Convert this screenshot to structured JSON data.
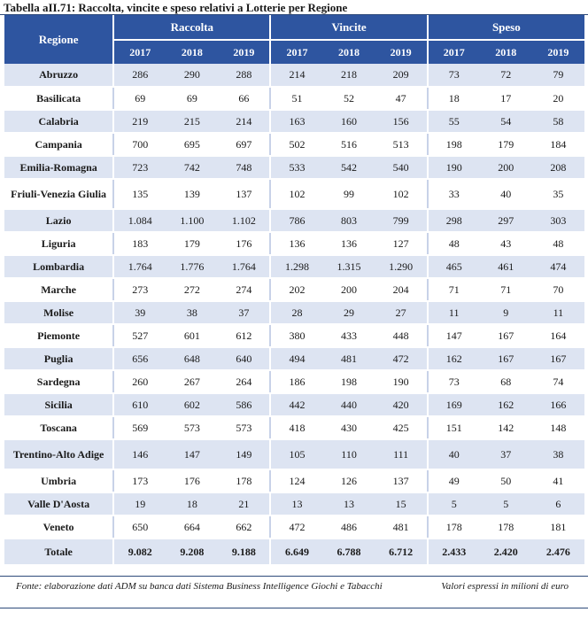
{
  "title": "Tabella aII.71: Raccolta, vincite e speso relativi a Lotterie per Regione",
  "table": {
    "region_header": "Regione",
    "groups": [
      "Raccolta",
      "Vincite",
      "Speso"
    ],
    "years": [
      "2017",
      "2018",
      "2019"
    ],
    "rows": [
      {
        "region": "Abruzzo",
        "values": [
          "286",
          "290",
          "288",
          "214",
          "218",
          "209",
          "73",
          "72",
          "79"
        ]
      },
      {
        "region": "Basilicata",
        "values": [
          "69",
          "69",
          "66",
          "51",
          "52",
          "47",
          "18",
          "17",
          "20"
        ]
      },
      {
        "region": "Calabria",
        "values": [
          "219",
          "215",
          "214",
          "163",
          "160",
          "156",
          "55",
          "54",
          "58"
        ]
      },
      {
        "region": "Campania",
        "values": [
          "700",
          "695",
          "697",
          "502",
          "516",
          "513",
          "198",
          "179",
          "184"
        ]
      },
      {
        "region": "Emilia-Romagna",
        "values": [
          "723",
          "742",
          "748",
          "533",
          "542",
          "540",
          "190",
          "200",
          "208"
        ]
      },
      {
        "region": "Friuli-Venezia Giulia",
        "values": [
          "135",
          "139",
          "137",
          "102",
          "99",
          "102",
          "33",
          "40",
          "35"
        ]
      },
      {
        "region": "Lazio",
        "values": [
          "1.084",
          "1.100",
          "1.102",
          "786",
          "803",
          "799",
          "298",
          "297",
          "303"
        ]
      },
      {
        "region": "Liguria",
        "values": [
          "183",
          "179",
          "176",
          "136",
          "136",
          "127",
          "48",
          "43",
          "48"
        ]
      },
      {
        "region": "Lombardia",
        "values": [
          "1.764",
          "1.776",
          "1.764",
          "1.298",
          "1.315",
          "1.290",
          "465",
          "461",
          "474"
        ]
      },
      {
        "region": "Marche",
        "values": [
          "273",
          "272",
          "274",
          "202",
          "200",
          "204",
          "71",
          "71",
          "70"
        ]
      },
      {
        "region": "Molise",
        "values": [
          "39",
          "38",
          "37",
          "28",
          "29",
          "27",
          "11",
          "9",
          "11"
        ]
      },
      {
        "region": "Piemonte",
        "values": [
          "527",
          "601",
          "612",
          "380",
          "433",
          "448",
          "147",
          "167",
          "164"
        ]
      },
      {
        "region": "Puglia",
        "values": [
          "656",
          "648",
          "640",
          "494",
          "481",
          "472",
          "162",
          "167",
          "167"
        ]
      },
      {
        "region": "Sardegna",
        "values": [
          "260",
          "267",
          "264",
          "186",
          "198",
          "190",
          "73",
          "68",
          "74"
        ]
      },
      {
        "region": "Sicilia",
        "values": [
          "610",
          "602",
          "586",
          "442",
          "440",
          "420",
          "169",
          "162",
          "166"
        ]
      },
      {
        "region": "Toscana",
        "values": [
          "569",
          "573",
          "573",
          "418",
          "430",
          "425",
          "151",
          "142",
          "148"
        ]
      },
      {
        "region": "Trentino-Alto Adige",
        "values": [
          "146",
          "147",
          "149",
          "105",
          "110",
          "111",
          "40",
          "37",
          "38"
        ]
      },
      {
        "region": "Umbria",
        "values": [
          "173",
          "176",
          "178",
          "124",
          "126",
          "137",
          "49",
          "50",
          "41"
        ]
      },
      {
        "region": "Valle D'Aosta",
        "values": [
          "19",
          "18",
          "21",
          "13",
          "13",
          "15",
          "5",
          "5",
          "6"
        ]
      },
      {
        "region": "Veneto",
        "values": [
          "650",
          "664",
          "662",
          "472",
          "486",
          "481",
          "178",
          "178",
          "181"
        ]
      }
    ],
    "total": {
      "region": "Totale",
      "values": [
        "9.082",
        "9.208",
        "9.188",
        "6.649",
        "6.788",
        "6.712",
        "2.433",
        "2.420",
        "2.476"
      ]
    }
  },
  "footer": {
    "source": "Fonte: elaborazione dati ADM su banca dati Sistema Business Intelligence Giochi e Tabacchi",
    "unit": "Valori espressi in milioni di euro"
  },
  "colors": {
    "header_bg": "#2e55a0",
    "band": "#dde4f2",
    "rule": "#2e4a7a"
  }
}
